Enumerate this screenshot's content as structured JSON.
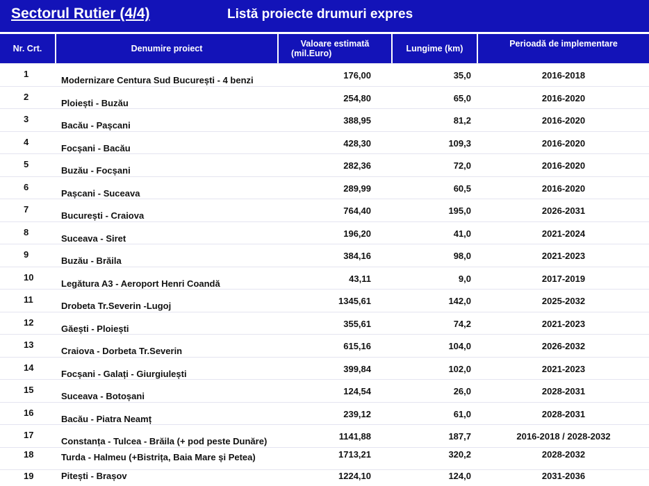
{
  "title": {
    "section": "Sectorul Rutier (4/4)",
    "list": "Listă proiecte drumuri expres"
  },
  "headers": {
    "nr": "Nr. Crt.",
    "name": "Denumire proiect",
    "value_line1": "Valoare estimată",
    "value_line2": "(mil.Euro)",
    "length": "Lungime (km)",
    "period": "Perioadă de implementare"
  },
  "rows": [
    {
      "nr": "1",
      "name": "Modernizare Centura Sud București - 4 benzi",
      "value": "176,00",
      "length": "35,0",
      "period": "2016-2018"
    },
    {
      "nr": "2",
      "name": "Ploiești - Buzău",
      "value": "254,80",
      "length": "65,0",
      "period": "2016-2020"
    },
    {
      "nr": "3",
      "name": "Bacău - Pașcani",
      "value": "388,95",
      "length": "81,2",
      "period": "2016-2020"
    },
    {
      "nr": "4",
      "name": "Focșani - Bacău",
      "value": "428,30",
      "length": "109,3",
      "period": "2016-2020"
    },
    {
      "nr": "5",
      "name": "Buzău - Focșani",
      "value": "282,36",
      "length": "72,0",
      "period": "2016-2020"
    },
    {
      "nr": "6",
      "name": "Pașcani - Suceava",
      "value": "289,99",
      "length": "60,5",
      "period": "2016-2020"
    },
    {
      "nr": "7",
      "name": "București - Craiova",
      "value": "764,40",
      "length": "195,0",
      "period": "2026-2031"
    },
    {
      "nr": "8",
      "name": "Suceava - Siret",
      "value": "196,20",
      "length": "41,0",
      "period": "2021-2024"
    },
    {
      "nr": "9",
      "name": "Buzău - Brăila",
      "value": "384,16",
      "length": "98,0",
      "period": "2021-2023"
    },
    {
      "nr": "10",
      "name": "Legătura A3 - Aeroport Henri Coandă",
      "value": "43,11",
      "length": "9,0",
      "period": "2017-2019"
    },
    {
      "nr": "11",
      "name": "Drobeta Tr.Severin -Lugoj",
      "value": "1345,61",
      "length": "142,0",
      "period": "2025-2032"
    },
    {
      "nr": "12",
      "name": "Găești - Ploiești",
      "value": "355,61",
      "length": "74,2",
      "period": "2021-2023"
    },
    {
      "nr": "13",
      "name": "Craiova - Dorbeta Tr.Severin",
      "value": "615,16",
      "length": "104,0",
      "period": "2026-2032"
    },
    {
      "nr": "14",
      "name": "Focșani - Galați - Giurgiulești",
      "value": "399,84",
      "length": "102,0",
      "period": "2021-2023"
    },
    {
      "nr": "15",
      "name": "Suceava - Botoșani",
      "value": "124,54",
      "length": "26,0",
      "period": "2028-2031"
    },
    {
      "nr": "16",
      "name": "Bacău - Piatra Neamț",
      "value": "239,12",
      "length": "61,0",
      "period": "2028-2031"
    },
    {
      "nr": "17",
      "name": "Constanța - Tulcea - Brăila (+ pod peste Dunăre)",
      "value": "1141,88",
      "length": "187,7",
      "period": "2016-2018 / 2028-2032"
    },
    {
      "nr": "18",
      "name": "Turda - Halmeu (+Bistrița, Baia Mare și Petea)",
      "value": "1713,21",
      "length": "320,2",
      "period": "2028-2032"
    },
    {
      "nr": "19",
      "name": "Pitești - Brașov",
      "value": "1224,10",
      "length": "124,0",
      "period": "2031-2036"
    }
  ]
}
